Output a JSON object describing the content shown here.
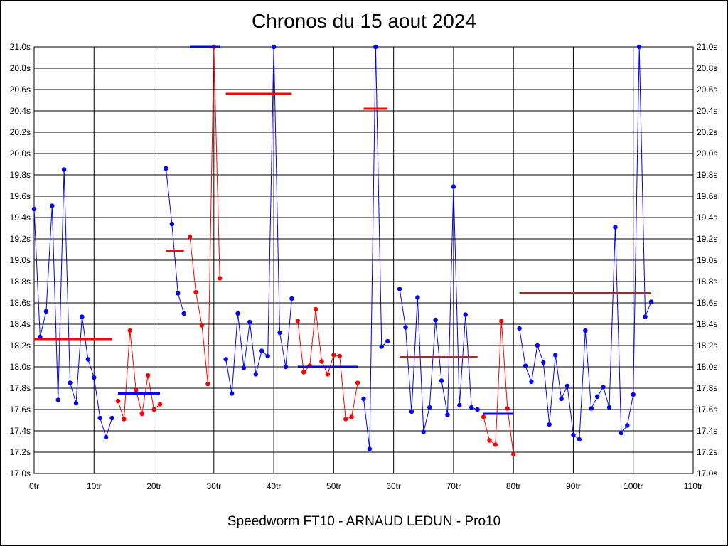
{
  "chart_data": {
    "type": "line",
    "title": "Chronos du 15 aout 2024",
    "subtitle": "Speedworm FT10 - ARNAUD LEDUN - Pro10",
    "xlim": [
      0,
      110
    ],
    "ylim": [
      17.0,
      21.0
    ],
    "x_ticks": [
      "0tr",
      "10tr",
      "20tr",
      "30tr",
      "40tr",
      "50tr",
      "60tr",
      "70tr",
      "80tr",
      "90tr",
      "100tr",
      "110tr"
    ],
    "y_ticks": [
      "17.0s",
      "17.2s",
      "17.4s",
      "17.6s",
      "17.8s",
      "18.0s",
      "18.2s",
      "18.4s",
      "18.6s",
      "18.8s",
      "19.0s",
      "19.2s",
      "19.4s",
      "19.6s",
      "19.8s",
      "20.0s",
      "20.2s",
      "20.4s",
      "20.6s",
      "20.8s",
      "21.0s"
    ],
    "grid": true,
    "colors": {
      "blue": "#0000ff",
      "red": "#ff0000"
    },
    "series": [
      {
        "color": "#0000ff",
        "points": [
          [
            0,
            19.48
          ],
          [
            1,
            18.28
          ],
          [
            2,
            18.52
          ],
          [
            3,
            19.51
          ],
          [
            4,
            17.69
          ],
          [
            5,
            19.85
          ],
          [
            6,
            17.85
          ],
          [
            7,
            17.66
          ],
          [
            8,
            18.47
          ],
          [
            9,
            18.07
          ],
          [
            10,
            17.9
          ],
          [
            11,
            17.52
          ],
          [
            12,
            17.34
          ],
          [
            13,
            17.52
          ]
        ]
      },
      {
        "color": "#ff0000",
        "points": [
          [
            14,
            17.68
          ],
          [
            15,
            17.51
          ],
          [
            16,
            18.34
          ],
          [
            17,
            17.78
          ],
          [
            18,
            17.56
          ],
          [
            19,
            17.92
          ],
          [
            20,
            17.6
          ],
          [
            21,
            17.65
          ]
        ]
      },
      {
        "color": "#0000ff",
        "points": [
          [
            22,
            19.86
          ],
          [
            23,
            19.34
          ],
          [
            24,
            18.69
          ],
          [
            25,
            18.5
          ]
        ]
      },
      {
        "color": "#ff0000",
        "points": [
          [
            26,
            19.22
          ],
          [
            27,
            18.7
          ],
          [
            28,
            18.39
          ],
          [
            29,
            17.84
          ],
          [
            30,
            21.0
          ],
          [
            31,
            18.83
          ]
        ]
      },
      {
        "color": "#0000ff",
        "points": [
          [
            32,
            18.07
          ],
          [
            33,
            17.75
          ],
          [
            34,
            18.5
          ],
          [
            35,
            17.99
          ],
          [
            36,
            18.42
          ],
          [
            37,
            17.93
          ],
          [
            38,
            18.15
          ],
          [
            39,
            18.1
          ],
          [
            40,
            21.0
          ],
          [
            41,
            18.32
          ],
          [
            42,
            18.0
          ],
          [
            43,
            18.64
          ]
        ]
      },
      {
        "color": "#ff0000",
        "points": [
          [
            44,
            18.43
          ],
          [
            45,
            17.95
          ],
          [
            46,
            18.01
          ],
          [
            47,
            18.54
          ],
          [
            48,
            18.05
          ],
          [
            49,
            17.93
          ],
          [
            50,
            18.11
          ],
          [
            51,
            18.1
          ],
          [
            52,
            17.51
          ],
          [
            53,
            17.53
          ],
          [
            54,
            17.85
          ]
        ]
      },
      {
        "color": "#0000ff",
        "points": [
          [
            55,
            17.7
          ],
          [
            56,
            17.23
          ],
          [
            57,
            21.0
          ],
          [
            58,
            18.19
          ],
          [
            59,
            18.24
          ]
        ]
      },
      {
        "color": "#0000ff",
        "points": [
          [
            61,
            18.73
          ],
          [
            62,
            18.37
          ],
          [
            63,
            17.58
          ],
          [
            64,
            18.65
          ],
          [
            65,
            17.39
          ],
          [
            66,
            17.62
          ],
          [
            67,
            18.44
          ],
          [
            68,
            17.87
          ],
          [
            69,
            17.55
          ],
          [
            70,
            19.69
          ],
          [
            71,
            17.64
          ],
          [
            72,
            18.49
          ],
          [
            73,
            17.62
          ],
          [
            74,
            17.6
          ]
        ]
      },
      {
        "color": "#ff0000",
        "points": [
          [
            75,
            17.53
          ],
          [
            76,
            17.31
          ],
          [
            77,
            17.27
          ],
          [
            78,
            18.43
          ],
          [
            79,
            17.61
          ],
          [
            80,
            17.18
          ]
        ]
      },
      {
        "color": "#0000ff",
        "points": [
          [
            81,
            18.36
          ],
          [
            82,
            18.01
          ],
          [
            83,
            17.86
          ],
          [
            84,
            18.2
          ],
          [
            85,
            18.04
          ],
          [
            86,
            17.46
          ],
          [
            87,
            18.11
          ],
          [
            88,
            17.7
          ],
          [
            89,
            17.82
          ],
          [
            90,
            17.36
          ],
          [
            91,
            17.32
          ],
          [
            92,
            18.34
          ],
          [
            93,
            17.61
          ],
          [
            94,
            17.72
          ],
          [
            95,
            17.81
          ],
          [
            96,
            17.62
          ],
          [
            97,
            19.31
          ],
          [
            98,
            17.38
          ],
          [
            99,
            17.45
          ],
          [
            100,
            17.74
          ],
          [
            101,
            21.0
          ],
          [
            102,
            18.47
          ],
          [
            103,
            18.61
          ]
        ]
      }
    ],
    "averages": [
      {
        "color": "#ff0000",
        "x": [
          0,
          13
        ],
        "y": 18.26
      },
      {
        "color": "#0000ff",
        "x": [
          14,
          21
        ],
        "y": 17.75
      },
      {
        "color": "#ff0000",
        "x": [
          22,
          25
        ],
        "y": 19.09
      },
      {
        "color": "#0000ff",
        "x": [
          26,
          31
        ],
        "y": 21.0
      },
      {
        "color": "#ff0000",
        "x": [
          32,
          43
        ],
        "y": 20.56
      },
      {
        "color": "#0000ff",
        "x": [
          44,
          54
        ],
        "y": 18.0
      },
      {
        "color": "#ff0000",
        "x": [
          55,
          59
        ],
        "y": 20.42
      },
      {
        "color": "#ff0000",
        "x": [
          61,
          74
        ],
        "y": 18.09
      },
      {
        "color": "#0000ff",
        "x": [
          75,
          80
        ],
        "y": 17.56
      },
      {
        "color": "#ff0000",
        "x": [
          81,
          103
        ],
        "y": 18.69
      }
    ]
  }
}
